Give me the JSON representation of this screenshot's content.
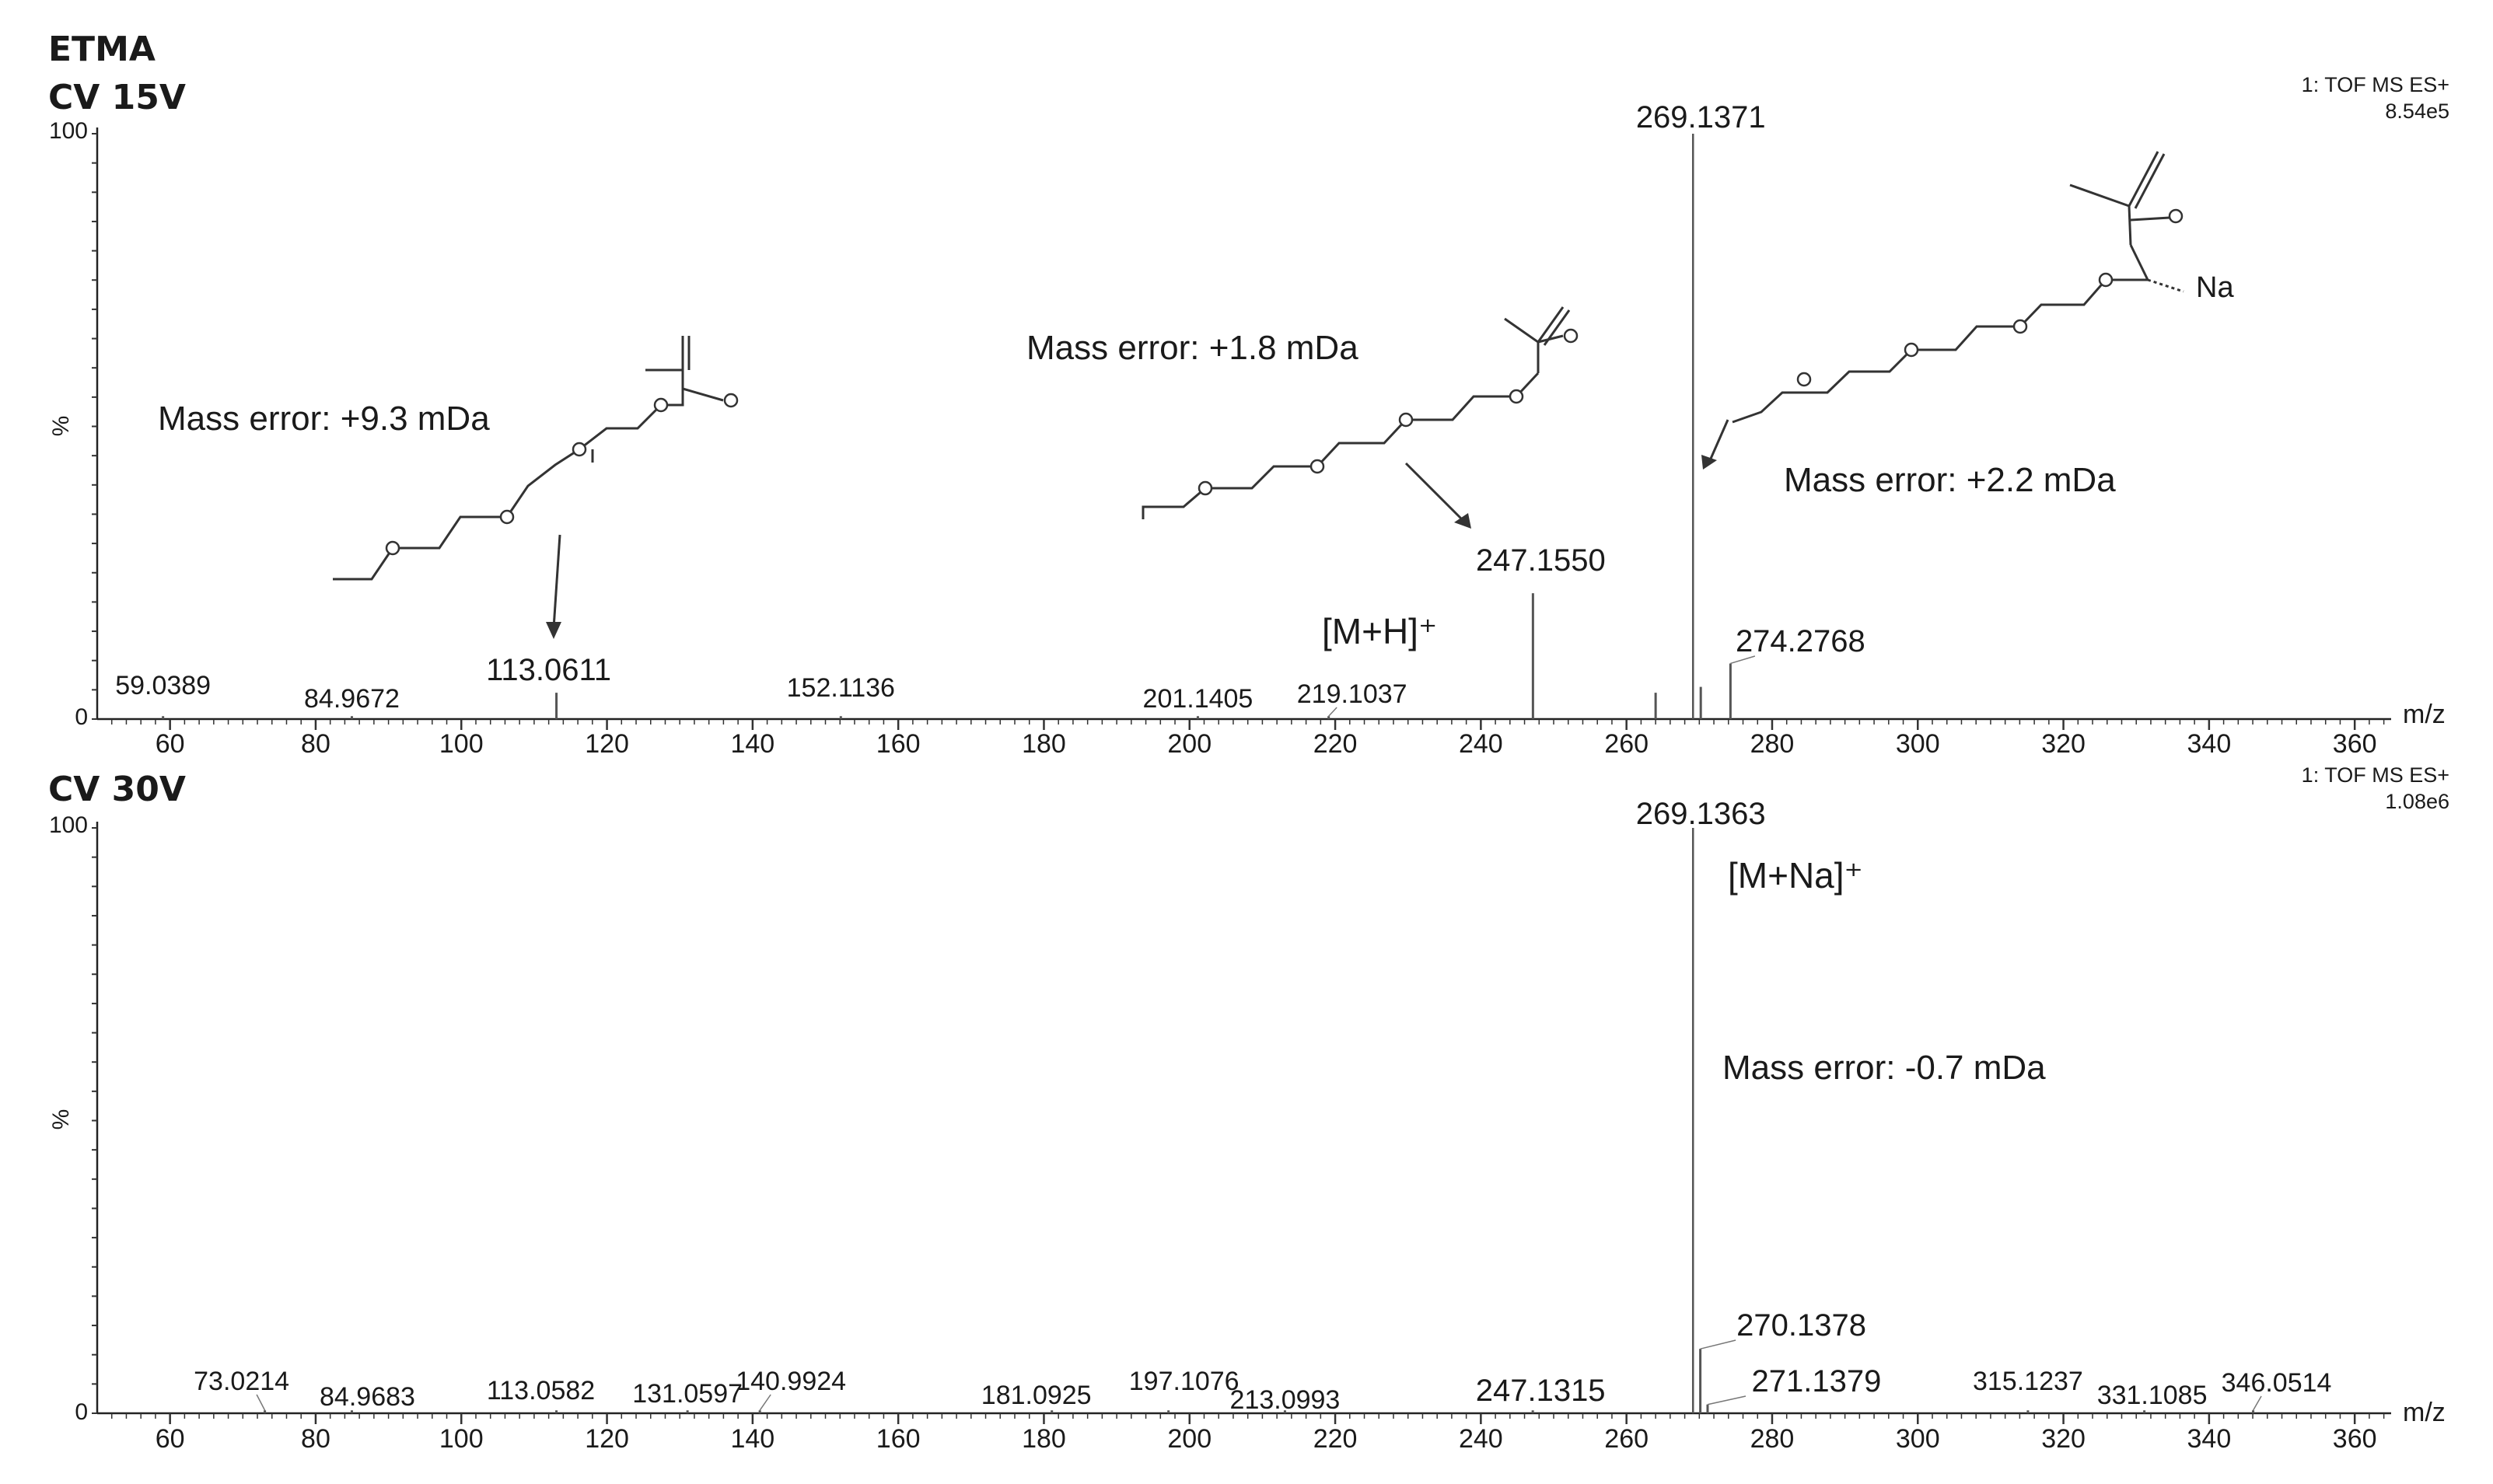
{
  "chart_data": [
    {
      "type": "bar",
      "compound_label": "ETMA",
      "title": "CV 15V",
      "xlabel": "m/z",
      "ylabel": "%",
      "xlim": [
        50,
        365
      ],
      "ylim": [
        0,
        100
      ],
      "x_ticks": [
        60,
        80,
        100,
        120,
        140,
        160,
        180,
        200,
        220,
        240,
        260,
        280,
        300,
        320,
        340,
        360
      ],
      "y_ticks": [
        0,
        100
      ],
      "instrument": "1: TOF MS ES+",
      "max_intensity": "8.54e5",
      "peaks": [
        {
          "mz": 59.0389,
          "intensity": 0.5,
          "label": "59.0389"
        },
        {
          "mz": 84.9672,
          "intensity": 0.5,
          "label": "84.9672"
        },
        {
          "mz": 113.0611,
          "intensity": 4.5,
          "label": "113.0611"
        },
        {
          "mz": 152.1136,
          "intensity": 0.5,
          "label": "152.1136"
        },
        {
          "mz": 201.1405,
          "intensity": 0.5,
          "label": "201.1405"
        },
        {
          "mz": 219.1037,
          "intensity": 0.5,
          "label": "219.1037"
        },
        {
          "mz": 247.155,
          "intensity": 21.5,
          "label": "247.1550"
        },
        {
          "mz": 264,
          "intensity": 4.5,
          "label": ""
        },
        {
          "mz": 269.1371,
          "intensity": 100,
          "label": "269.1371"
        },
        {
          "mz": 270.2,
          "intensity": 5.5,
          "label": ""
        },
        {
          "mz": 274.2768,
          "intensity": 9.5,
          "label": "274.2768"
        }
      ],
      "annotations": [
        {
          "text": "Mass error: +9.3 mDa"
        },
        {
          "text": "Mass error: +1.8 mDa"
        },
        {
          "text": "Mass error: +2.2 mDa"
        },
        {
          "text": "[M+H]⁺"
        },
        {
          "text": "Na"
        }
      ]
    },
    {
      "type": "bar",
      "title": "CV 30V",
      "xlabel": "m/z",
      "ylabel": "%",
      "xlim": [
        50,
        365
      ],
      "ylim": [
        0,
        100
      ],
      "x_ticks": [
        60,
        80,
        100,
        120,
        140,
        160,
        180,
        200,
        220,
        240,
        260,
        280,
        300,
        320,
        340,
        360
      ],
      "y_ticks": [
        0,
        100
      ],
      "instrument": "1: TOF MS ES+",
      "max_intensity": "1.08e6",
      "peaks": [
        {
          "mz": 73.0214,
          "intensity": 0.5,
          "label": "73.0214"
        },
        {
          "mz": 84.9683,
          "intensity": 0.5,
          "label": "84.9683"
        },
        {
          "mz": 113.0582,
          "intensity": 0.5,
          "label": "113.0582"
        },
        {
          "mz": 131.0597,
          "intensity": 0.5,
          "label": "131.0597"
        },
        {
          "mz": 140.9924,
          "intensity": 0.5,
          "label": "140.9924"
        },
        {
          "mz": 181.0925,
          "intensity": 0.5,
          "label": "181.0925"
        },
        {
          "mz": 197.1076,
          "intensity": 0.5,
          "label": "197.1076"
        },
        {
          "mz": 213.0993,
          "intensity": 0.5,
          "label": "213.0993"
        },
        {
          "mz": 247.1315,
          "intensity": 0.5,
          "label": "247.1315"
        },
        {
          "mz": 269.1363,
          "intensity": 100,
          "label": "269.1363"
        },
        {
          "mz": 270.1378,
          "intensity": 11,
          "label": "270.1378"
        },
        {
          "mz": 271.1379,
          "intensity": 1.5,
          "label": "271.1379"
        },
        {
          "mz": 315.1237,
          "intensity": 0.5,
          "label": "315.1237"
        },
        {
          "mz": 331.1085,
          "intensity": 0.5,
          "label": "331.1085"
        },
        {
          "mz": 346.0514,
          "intensity": 0.5,
          "label": "346.0514"
        }
      ],
      "annotations": [
        {
          "text": "[M+Na]⁺"
        },
        {
          "text": "Mass error: -0.7 mDa"
        }
      ]
    }
  ]
}
